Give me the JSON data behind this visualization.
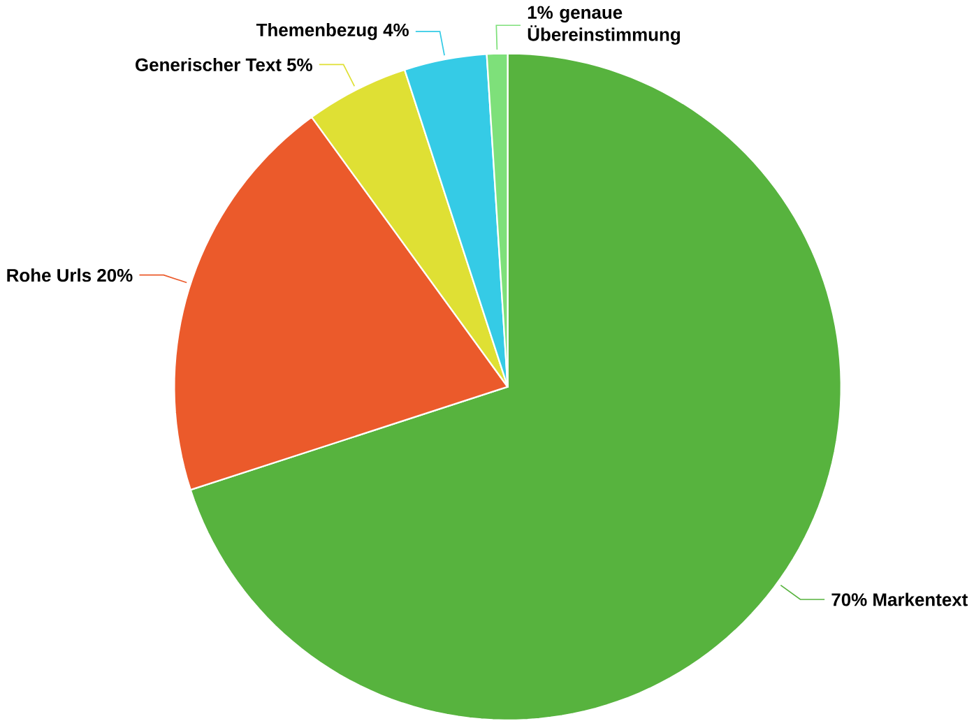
{
  "chart_data": {
    "type": "pie",
    "categories": [
      "70% Markentext",
      "Rohe Urls 20%",
      "Generischer Text 5%",
      "Themenbezug 4%",
      "1% genaue Übereinstimmung"
    ],
    "values": [
      70,
      20,
      5,
      4,
      1
    ],
    "colors": [
      "#57b33e",
      "#eb5a2b",
      "#dfe034",
      "#35cbe6",
      "#7ee07a"
    ]
  }
}
